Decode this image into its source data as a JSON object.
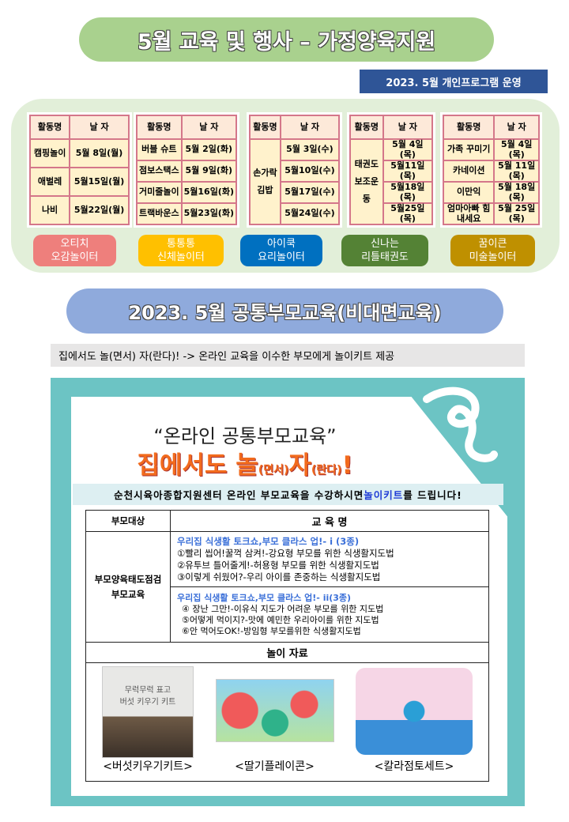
{
  "title1": "5월 교육 및 행사 – 가정양육지원",
  "sub1": "2023. 5월 개인프로그램 운영",
  "tables": [
    {
      "head": [
        "활동명",
        "날 자"
      ],
      "rows": [
        [
          "캠핑놀이",
          "5월 8일(월)"
        ],
        [
          "애벌레",
          "5월15일(월)"
        ],
        [
          "나비",
          "5월22일(월)"
        ]
      ],
      "label": [
        "오티치",
        "오감놀이터"
      ],
      "color": "#ee7f7c"
    },
    {
      "head": [
        "활동명",
        "날 자"
      ],
      "rows": [
        [
          "버블 슈트",
          "5월 2일(화)"
        ],
        [
          "점보스택스",
          "5월 9일(화)"
        ],
        [
          "거미줄놀이",
          "5월16일(화)"
        ],
        [
          "트랙바운스",
          "5월23일(화)"
        ]
      ],
      "label": [
        "통통통",
        "신체놀이터"
      ],
      "color": "#ffc000"
    },
    {
      "head": [
        "활동명",
        "날 자"
      ],
      "merged": "손가락\n김밥",
      "dates": [
        "5월 3일(수)",
        "5월10일(수)",
        "5월17일(수)",
        "5월24일(수)"
      ],
      "label": [
        "아이쿡",
        "요리놀이터"
      ],
      "color": "#0070c0"
    },
    {
      "head": [
        "활동명",
        "날 자"
      ],
      "merged": "태권도\n보조운동",
      "dates": [
        "5월 4일(목)",
        "5월11일(목)",
        "5월18일(목)",
        "5월25일(목)"
      ],
      "label": [
        "신나는",
        "리틀태권도"
      ],
      "color": "#548235"
    },
    {
      "head": [
        "활동명",
        "날 자"
      ],
      "rows": [
        [
          "가족 꾸미기",
          "5월 4일(목)"
        ],
        [
          "카네이션",
          "5월 11일(목)"
        ],
        [
          "이만익",
          "5월 18일(목)"
        ],
        [
          "엄마아빠 힘내세요",
          "5월 25일(목)"
        ]
      ],
      "label": [
        "꿈이큰",
        "미술놀이터"
      ],
      "color": "#bf9000"
    }
  ],
  "title2": "2023. 5월 공통부모교육(비대면교육)",
  "grey": "집에서도 놀(면서) 자(란다)! -> 온라인 교육을 이수한 부모에게 놀이키트 제공",
  "poster": {
    "quote": "“온라인  공통부모교육”",
    "big1": "집에서도  놀",
    "big2": "(면서)",
    "big3": "자",
    "big4": "(란다)",
    "big5": "!",
    "notice1": "순천시육아종합지원센터 온라인 부모교육을 수강하시면 ",
    "notice2": "놀이키트",
    "notice3": "를 드립니다!",
    "col1": "부모대상",
    "col2": "교  육  명",
    "target": "부모양육태도점검\n부모교육",
    "course1": {
      "title": "우리집 식생활 토크쇼,부모 클라스 업!- i (3종)",
      "items": [
        "①빨리 씹어!꿀꺽 삼켜!-강요형 부모를 위한 식생활지도법",
        "②유투브 틀어줄게!-허용형 부모를 위한 식생활지도법",
        "③이렇게 쉬웠어?-우리 아이를 존중하는 식생활지도법"
      ]
    },
    "course2": {
      "title": "우리집 식생활 토크쇼,부모 클라스 업!- ii(3종)",
      "items": [
        "④ 장난 그만!-이유식 지도가 어려운 부모를 위한 지도법",
        "⑤어떻게 먹이지?-맛에 예민한 우리아이를 위한 지도법",
        "⑥안 먹어도OK!-방임형 부모를위한 식생활지도법"
      ]
    },
    "play": "놀이 자료",
    "kits": [
      {
        "name": "<버섯키우기키트>",
        "text": "무럭무럭 표고\n버섯 키우기 키트"
      },
      {
        "name": "<딸기플레이콘>"
      },
      {
        "name": "<칼라점토세트>"
      }
    ]
  }
}
